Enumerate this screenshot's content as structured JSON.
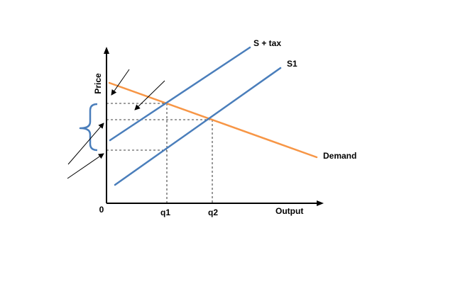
{
  "diagram": {
    "axes": {
      "y_label": "Price",
      "x_label": "Output",
      "origin_label": "0"
    },
    "quantities": {
      "q1": "q1",
      "q2": "q2"
    },
    "curves": {
      "supply_with_tax": "S + tax",
      "supply_original": "S1",
      "demand": "Demand"
    },
    "colors": {
      "supply": "#4a7ebb",
      "demand": "#f79646",
      "axis": "#000000",
      "guide": "#000000"
    }
  }
}
